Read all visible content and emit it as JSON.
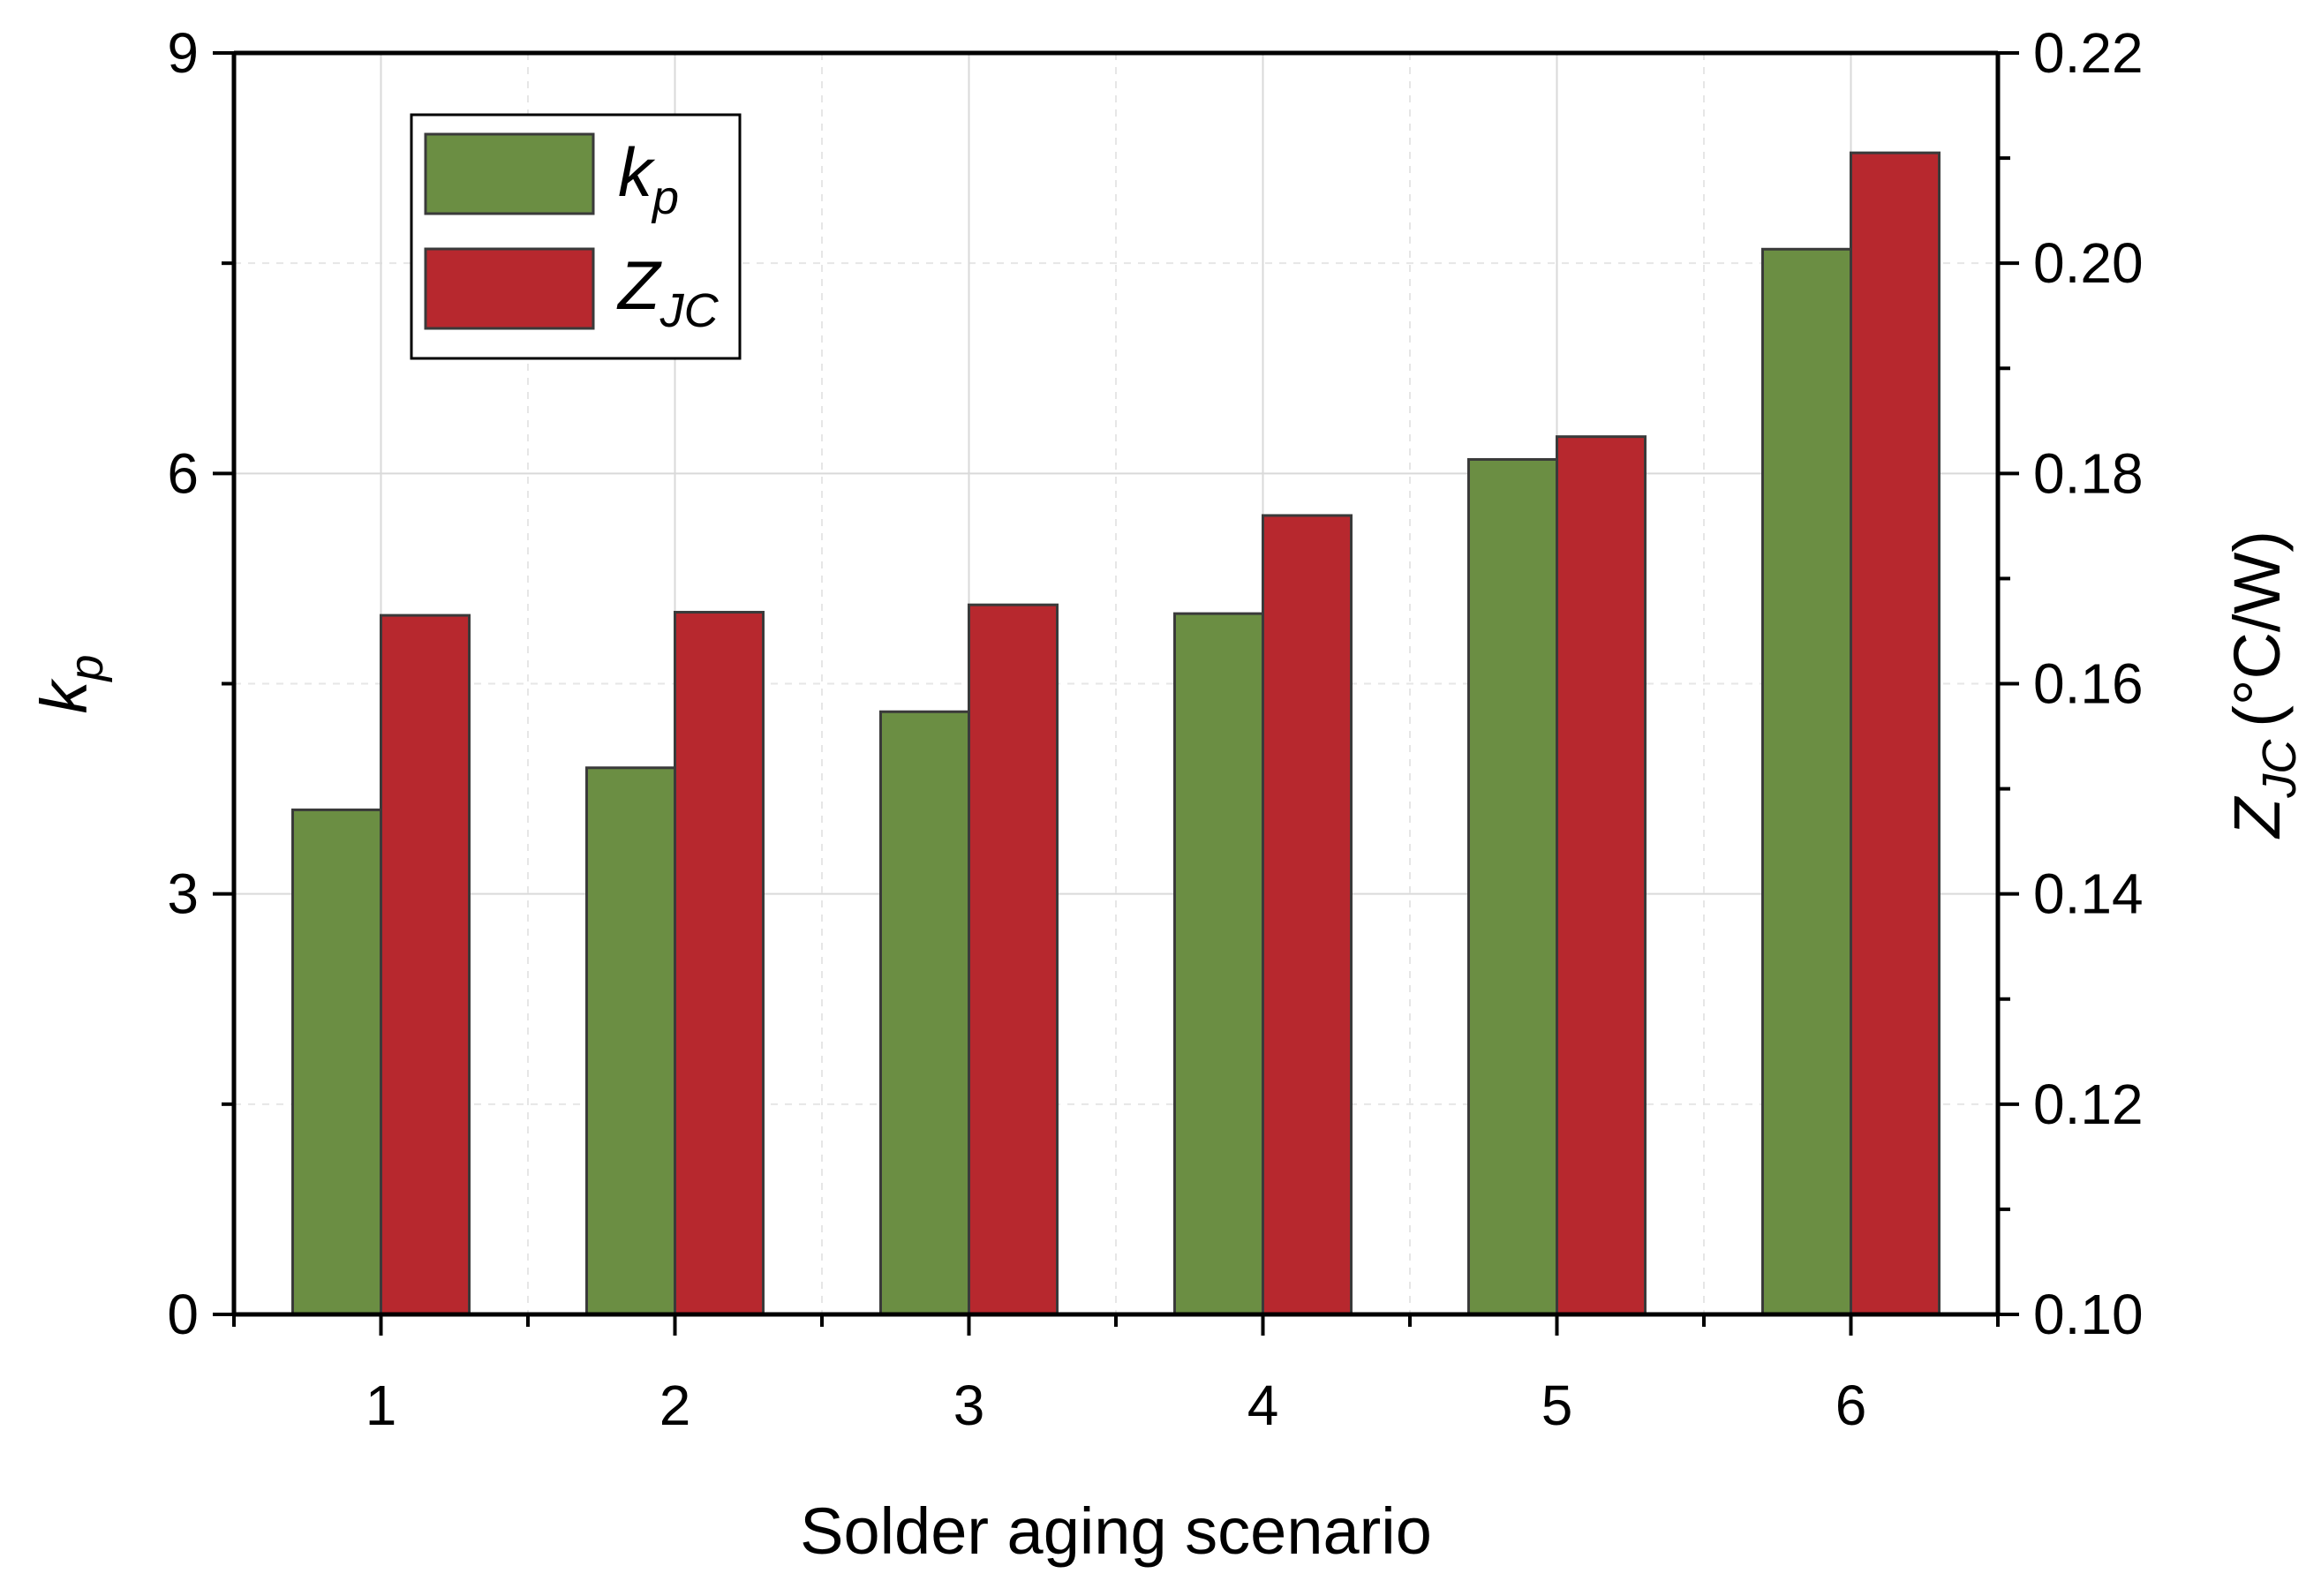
{
  "chart_data": {
    "type": "bar",
    "categories": [
      "1",
      "2",
      "3",
      "4",
      "5",
      "6"
    ],
    "series": [
      {
        "name": "k_p",
        "axis": "left",
        "color": "#6b8e43",
        "values": [
          3.6,
          3.9,
          4.3,
          5.0,
          6.1,
          7.6
        ]
      },
      {
        "name": "Z_JC",
        "axis": "right",
        "color": "#b7282e",
        "values": [
          0.1665,
          0.1668,
          0.1675,
          0.176,
          0.1835,
          0.2105
        ]
      }
    ],
    "xlabel": "Solder aging scenario",
    "ylabel_left": {
      "main": "k",
      "sub": "p"
    },
    "ylabel_right": {
      "main": "Z",
      "sub": "JC",
      "unit": "(°C/W)"
    },
    "ylim_left": [
      0,
      9
    ],
    "ylim_right": [
      0.1,
      0.22
    ],
    "left_ticks": [
      "0",
      "3",
      "6",
      "9"
    ],
    "right_ticks": [
      "0.10",
      "0.12",
      "0.14",
      "0.16",
      "0.18",
      "0.20",
      "0.22"
    ],
    "legend": [
      {
        "main": "k",
        "sub": "p",
        "color": "#6b8e43"
      },
      {
        "main": "Z",
        "sub": "JC",
        "color": "#b7282e"
      }
    ],
    "legend_position": "top-left",
    "grid": true
  }
}
